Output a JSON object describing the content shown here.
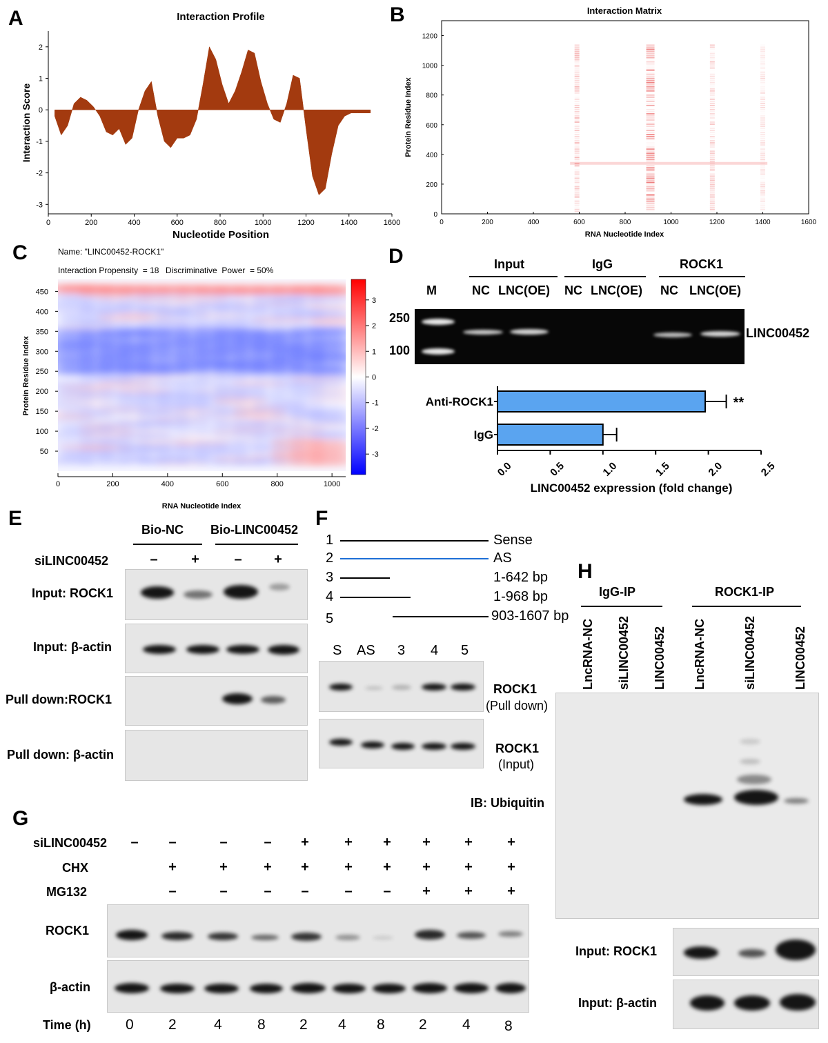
{
  "panels": {
    "A": "A",
    "B": "B",
    "C": "C",
    "D": "D",
    "E": "E",
    "F": "F",
    "G": "G",
    "H": "H"
  },
  "panelA": {
    "chart_data": {
      "type": "area",
      "title": "Interaction Profile",
      "xlabel": "Nucleotide Position",
      "ylabel": "Interaction Score",
      "xlim": [
        0,
        1600
      ],
      "ylim": [
        -3.3,
        2.5
      ],
      "xticks": [
        "0",
        "200",
        "400",
        "600",
        "800",
        "1000",
        "1200",
        "1400",
        "1600"
      ],
      "yticks": [
        "2",
        "1",
        "0",
        "-1",
        "-2",
        "-3"
      ],
      "xtick_values": [
        0,
        200,
        400,
        600,
        800,
        1000,
        1200,
        1400,
        1600
      ],
      "ytick_values": [
        2,
        1,
        0,
        -1,
        -2,
        -3
      ],
      "color": "#a33a0f",
      "x": [
        30,
        60,
        90,
        120,
        150,
        180,
        210,
        240,
        270,
        300,
        330,
        360,
        390,
        420,
        450,
        480,
        510,
        540,
        570,
        600,
        630,
        660,
        690,
        720,
        750,
        780,
        810,
        840,
        870,
        900,
        930,
        960,
        990,
        1020,
        1050,
        1080,
        1110,
        1140,
        1170,
        1200,
        1230,
        1260,
        1290,
        1320,
        1350,
        1380,
        1410,
        1440,
        1470,
        1500
      ],
      "y": [
        -0.2,
        -0.8,
        -0.5,
        0.2,
        0.4,
        0.3,
        0.1,
        -0.2,
        -0.7,
        -0.8,
        -0.6,
        -1.1,
        -0.9,
        0.0,
        0.6,
        0.9,
        -0.2,
        -1.0,
        -1.2,
        -0.9,
        -0.9,
        -0.8,
        -0.3,
        0.8,
        2.0,
        1.6,
        0.8,
        0.2,
        0.6,
        1.2,
        1.9,
        1.8,
        0.9,
        0.2,
        -0.3,
        -0.4,
        0.2,
        1.1,
        1.0,
        -0.6,
        -2.1,
        -2.7,
        -2.5,
        -1.4,
        -0.5,
        -0.2,
        -0.1,
        -0.1,
        -0.1,
        -0.1
      ]
    }
  },
  "panelB": {
    "chart_data": {
      "type": "heatmap",
      "title": "Interaction Matrix",
      "xlabel": "RNA Nucleotide Index",
      "ylabel": "Protein Residue Index",
      "xlim": [
        0,
        1600
      ],
      "ylim": [
        0,
        1300
      ],
      "xticks": [
        "0",
        "200",
        "400",
        "600",
        "800",
        "1000",
        "1200",
        "1400",
        "1600"
      ],
      "yticks": [
        "0",
        "200",
        "400",
        "600",
        "800",
        "1000",
        "1200"
      ],
      "xtick_values": [
        0,
        200,
        400,
        600,
        800,
        1000,
        1200,
        1400,
        1600
      ],
      "ytick_values": [
        0,
        200,
        400,
        600,
        800,
        1000,
        1200
      ],
      "columns": [
        {
          "x": 590,
          "strength": 0.55
        },
        {
          "x": 910,
          "strength": 1.0
        },
        {
          "x": 1180,
          "strength": 0.45
        },
        {
          "x": 1400,
          "strength": 0.3
        }
      ],
      "hot_row_y": 340
    }
  },
  "panelC": {
    "name": "Name: \"LINC00452-ROCK1\"",
    "propensity": "Interaction Propensity  = 18",
    "power": "Discriminative  Power  = 50%",
    "chart_data": {
      "type": "heatmap",
      "xlabel": "RNA Nucleotide Index",
      "ylabel": "Protein Residue Index",
      "xlim": [
        0,
        1050
      ],
      "ylim": [
        0,
        480
      ],
      "xticks": [
        "0",
        "200",
        "400",
        "600",
        "800",
        "1000"
      ],
      "yticks": [
        "50",
        "100",
        "150",
        "200",
        "250",
        "300",
        "350",
        "400",
        "450"
      ],
      "xtick_values": [
        0,
        200,
        400,
        600,
        800,
        1000
      ],
      "ytick_values": [
        50,
        100,
        150,
        200,
        250,
        300,
        350,
        400,
        450
      ],
      "colorbar_ticks": [
        "3",
        "2",
        "1",
        "0",
        "-1",
        "-2",
        "-3"
      ],
      "colorbar_range": [
        -3.8,
        3.8
      ]
    }
  },
  "panelD": {
    "groups": [
      "Input",
      "IgG",
      "ROCK1"
    ],
    "lanes": [
      "NC",
      "LNC(OE)",
      "NC",
      "LNC(OE)",
      "NC",
      "LNC(OE)"
    ],
    "marker": "M",
    "marker_sizes": [
      "250",
      "100"
    ],
    "band_label": "LINC00452",
    "chart_data": {
      "type": "bar",
      "orientation": "horizontal",
      "categories": [
        "Anti-ROCK1",
        "IgG"
      ],
      "values": [
        1.97,
        1.0
      ],
      "errors": [
        0.2,
        0.13
      ],
      "xlabel": "LINC00452 expression (fold change)",
      "xlim": [
        0,
        2.5
      ],
      "xticks": [
        "0.0",
        "0.5",
        "1.0",
        "1.5",
        "2.0",
        "2.5"
      ],
      "xtick_values": [
        0,
        0.5,
        1.0,
        1.5,
        2.0,
        2.5
      ],
      "annotation": "**",
      "color": "#5aa4f0"
    }
  },
  "panelE": {
    "group1": "Bio-NC",
    "group2": "Bio-LINC00452",
    "treatment": "siLINC00452",
    "signs": [
      "–",
      "+",
      "–",
      "+"
    ],
    "rows": [
      "Input: ROCK1",
      "Input: β-actin",
      "Pull down:ROCK1",
      "Pull down: β-actin"
    ]
  },
  "panelF": {
    "constructs": [
      {
        "num": "1",
        "label": "Sense"
      },
      {
        "num": "2",
        "label": "AS"
      },
      {
        "num": "3",
        "label": "1-642 bp"
      },
      {
        "num": "4",
        "label": "1-968 bp"
      },
      {
        "num": "5",
        "label": "903-1607 bp"
      }
    ],
    "lanes": [
      "S",
      "AS",
      "3",
      "4",
      "5"
    ],
    "blot1_main": "ROCK1",
    "blot1_sub": "(Pull down)",
    "blot2_main": "ROCK1",
    "blot2_sub": "(Input)"
  },
  "panelG": {
    "row_labels": [
      "siLINC00452",
      "CHX",
      "MG132"
    ],
    "si": [
      "–",
      "–",
      "–",
      "–",
      "+",
      "+",
      "+",
      "+",
      "+",
      "+"
    ],
    "chx": [
      "+",
      "+",
      "+",
      "+",
      "+",
      "+",
      "+",
      "+",
      "+"
    ],
    "mg": [
      "–",
      "–",
      "–",
      "–",
      "–",
      "–",
      "+",
      "+",
      "+"
    ],
    "blots": [
      "ROCK1",
      "β-actin"
    ],
    "time_label": "Time (h)",
    "times": [
      "0",
      "2",
      "4",
      "8",
      "2",
      "4",
      "8",
      "2",
      "4",
      "8"
    ]
  },
  "panelH": {
    "group1": "IgG-IP",
    "group2": "ROCK1-IP",
    "lanes": [
      "LncRNA-NC",
      "siLINC00452",
      "LINC00452",
      "LncRNA-NC",
      "siLINC00452",
      "LINC00452"
    ],
    "ib_label": "IB: Ubiquitin",
    "input_rock1": "Input: ROCK1",
    "input_actin": "Input: β-actin"
  }
}
